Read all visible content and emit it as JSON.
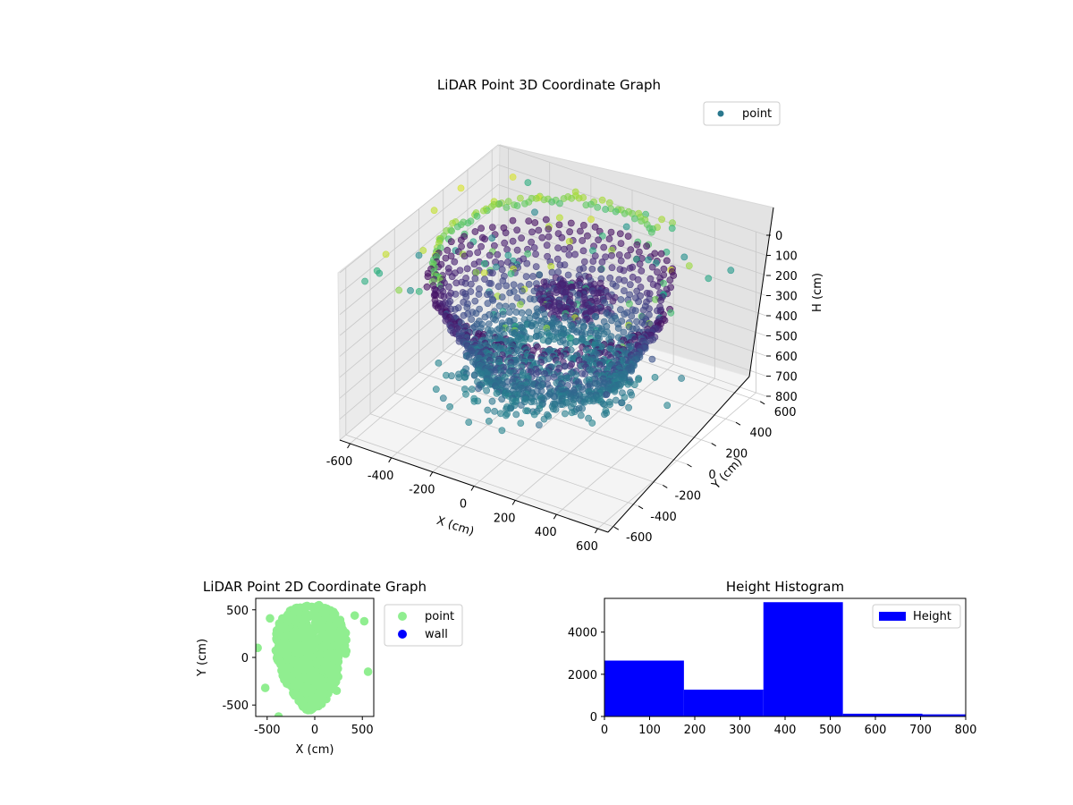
{
  "chart_data": [
    {
      "type": "scatter",
      "projection": "3d",
      "title": "LiDAR Point 3D Coordinate Graph",
      "xlabel": "X (cm)",
      "ylabel": "Y (cm)",
      "zlabel": "H (cm)",
      "xlim": [
        -650,
        650
      ],
      "ylim": [
        -650,
        650
      ],
      "zlim": [
        800,
        0
      ],
      "z_inverted": true,
      "x_ticks": [
        -600,
        -400,
        -200,
        0,
        200,
        400,
        600
      ],
      "y_ticks": [
        -600,
        -400,
        -200,
        0,
        200,
        400,
        600
      ],
      "z_ticks": [
        0,
        100,
        200,
        300,
        400,
        500,
        600,
        700,
        800
      ],
      "grid": true,
      "colormap": "viridis",
      "legend": {
        "position": "top-right",
        "entries": [
          "point"
        ]
      },
      "series": [
        {
          "name": "point",
          "color_by": "H (cm)",
          "description_points": "dome-shaped cloud of ~9000 points, radius ~300-650 cm, with ceiling points near H=0-100 and floor points near H=500-600",
          "ring_radius_range": [
            250,
            650
          ],
          "h_range": [
            0,
            800
          ]
        }
      ]
    },
    {
      "type": "scatter",
      "title": "LiDAR Point 2D Coordinate Graph",
      "xlabel": "X (cm)",
      "ylabel": "Y (cm)",
      "xlim": [
        -620,
        620
      ],
      "ylim": [
        -620,
        620
      ],
      "x_ticks": [
        -500,
        0,
        500
      ],
      "y_ticks": [
        -500,
        0,
        500
      ],
      "legend": {
        "position": "outside-right",
        "entries": [
          "point",
          "wall"
        ]
      },
      "series": [
        {
          "name": "point",
          "color": "#90ee90"
        },
        {
          "name": "wall",
          "color": "#0000ff",
          "values": []
        }
      ]
    },
    {
      "type": "bar",
      "subtype": "histogram",
      "title": "Height Histogram",
      "xlim": [
        0,
        800
      ],
      "ylim": [
        0,
        5600
      ],
      "x_ticks": [
        0,
        100,
        200,
        300,
        400,
        500,
        600,
        700,
        800
      ],
      "y_ticks": [
        0,
        2000,
        4000
      ],
      "legend": {
        "position": "top-right",
        "entries": [
          "Height"
        ]
      },
      "series": [
        {
          "name": "Height",
          "color": "#0000ff",
          "bins": [
            {
              "from": 0,
              "to": 176,
              "count": 2650
            },
            {
              "from": 176,
              "to": 352,
              "count": 1270
            },
            {
              "from": 352,
              "to": 528,
              "count": 5420
            },
            {
              "from": 528,
              "to": 704,
              "count": 130
            },
            {
              "from": 704,
              "to": 880,
              "count": 100
            }
          ]
        }
      ]
    }
  ]
}
